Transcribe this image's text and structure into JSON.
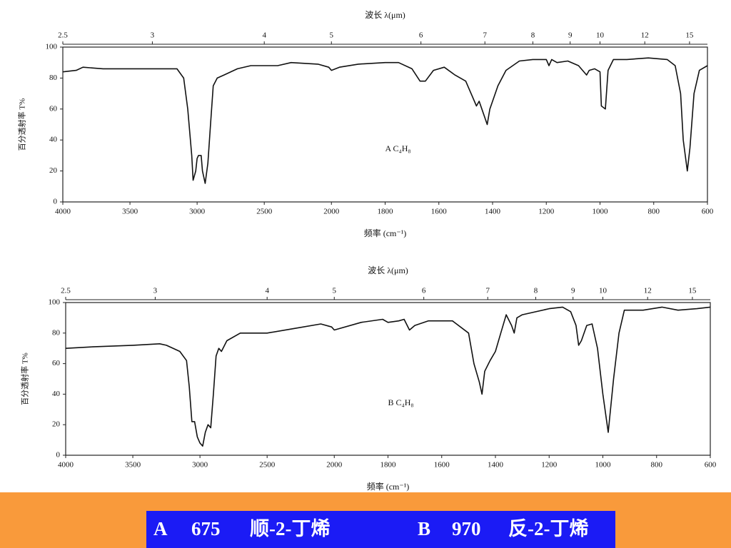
{
  "chart_data": [
    {
      "type": "line",
      "top_axis_label": "波长 λ(μm)",
      "x_label": "频率 (cm⁻¹)",
      "y_label": "百分透射率 T%",
      "annotation": "A   C₄H₈",
      "xlim": [
        4000,
        600
      ],
      "xscale_change": {
        "at": 2000,
        "factor": 2
      },
      "xticks": [
        4000,
        3500,
        3000,
        2500,
        2000,
        1800,
        1600,
        1400,
        1200,
        1000,
        800,
        600
      ],
      "x2ticks": [
        2.5,
        3,
        4,
        5,
        6,
        7,
        8,
        9,
        10,
        12,
        15
      ],
      "ylim": [
        0,
        100
      ],
      "yticks": [
        0,
        20,
        40,
        60,
        80,
        100
      ],
      "x": [
        4000,
        3900,
        3850,
        3700,
        3500,
        3300,
        3150,
        3100,
        3070,
        3040,
        3030,
        3010,
        3000,
        2990,
        2970,
        2960,
        2940,
        2920,
        2900,
        2880,
        2850,
        2800,
        2700,
        2600,
        2400,
        2300,
        2100,
        2020,
        2000,
        1970,
        1900,
        1800,
        1750,
        1700,
        1670,
        1650,
        1620,
        1580,
        1540,
        1500,
        1480,
        1460,
        1450,
        1440,
        1420,
        1410,
        1400,
        1380,
        1350,
        1300,
        1250,
        1200,
        1190,
        1180,
        1160,
        1120,
        1080,
        1050,
        1040,
        1020,
        1000,
        995,
        980,
        970,
        950,
        900,
        820,
        750,
        720,
        700,
        690,
        675,
        665,
        650,
        630,
        600
      ],
      "series": [
        {
          "color": "#111",
          "values": [
            84,
            85,
            87,
            86,
            86,
            86,
            86,
            80,
            60,
            30,
            14,
            20,
            28,
            30,
            30,
            20,
            12,
            25,
            50,
            75,
            80,
            82,
            86,
            88,
            88,
            90,
            89,
            87,
            85,
            87,
            89,
            90,
            90,
            86,
            78,
            78,
            85,
            87,
            82,
            78,
            70,
            62,
            65,
            60,
            50,
            60,
            65,
            75,
            85,
            91,
            92,
            92,
            88,
            92,
            90,
            91,
            88,
            82,
            85,
            86,
            84,
            62,
            60,
            85,
            92,
            92,
            93,
            92,
            88,
            70,
            40,
            20,
            35,
            70,
            85,
            88
          ]
        }
      ]
    },
    {
      "type": "line",
      "top_axis_label": "波长 λ(μm)",
      "x_label": "频率 (cm⁻¹)",
      "y_label": "百分透射率 T%",
      "annotation": "B   C₄H₈",
      "xlim": [
        4000,
        600
      ],
      "xscale_change": {
        "at": 2000,
        "factor": 2
      },
      "xticks": [
        4000,
        3500,
        3000,
        2500,
        2000,
        1800,
        1600,
        1400,
        1200,
        1000,
        800,
        600
      ],
      "x2ticks": [
        2.5,
        3,
        4,
        5,
        6,
        7,
        8,
        9,
        10,
        12,
        15
      ],
      "ylim": [
        0,
        100
      ],
      "yticks": [
        0,
        20,
        40,
        60,
        80,
        100
      ],
      "x": [
        4000,
        3800,
        3500,
        3300,
        3250,
        3150,
        3100,
        3080,
        3060,
        3040,
        3020,
        3000,
        2980,
        2960,
        2940,
        2920,
        2900,
        2880,
        2860,
        2840,
        2800,
        2700,
        2500,
        2300,
        2100,
        2020,
        2000,
        1900,
        1820,
        1800,
        1760,
        1740,
        1720,
        1700,
        1650,
        1560,
        1500,
        1480,
        1460,
        1450,
        1440,
        1420,
        1400,
        1380,
        1360,
        1340,
        1330,
        1320,
        1300,
        1200,
        1150,
        1120,
        1100,
        1090,
        1080,
        1060,
        1040,
        1020,
        1000,
        980,
        960,
        940,
        920,
        850,
        780,
        720,
        650,
        600
      ],
      "series": [
        {
          "color": "#111",
          "values": [
            70,
            71,
            72,
            73,
            72,
            68,
            62,
            45,
            22,
            22,
            12,
            8,
            6,
            15,
            20,
            18,
            40,
            65,
            70,
            68,
            75,
            80,
            80,
            83,
            86,
            84,
            82,
            87,
            89,
            87,
            88,
            89,
            82,
            85,
            88,
            88,
            80,
            60,
            48,
            40,
            55,
            62,
            68,
            80,
            92,
            85,
            80,
            90,
            92,
            96,
            97,
            94,
            85,
            72,
            75,
            85,
            86,
            70,
            40,
            15,
            50,
            80,
            95,
            95,
            97,
            95,
            96,
            97
          ]
        }
      ]
    }
  ],
  "banner": {
    "items": [
      "A",
      "675",
      "顺-2-丁烯",
      "B",
      "970",
      "反-2-丁烯"
    ]
  }
}
